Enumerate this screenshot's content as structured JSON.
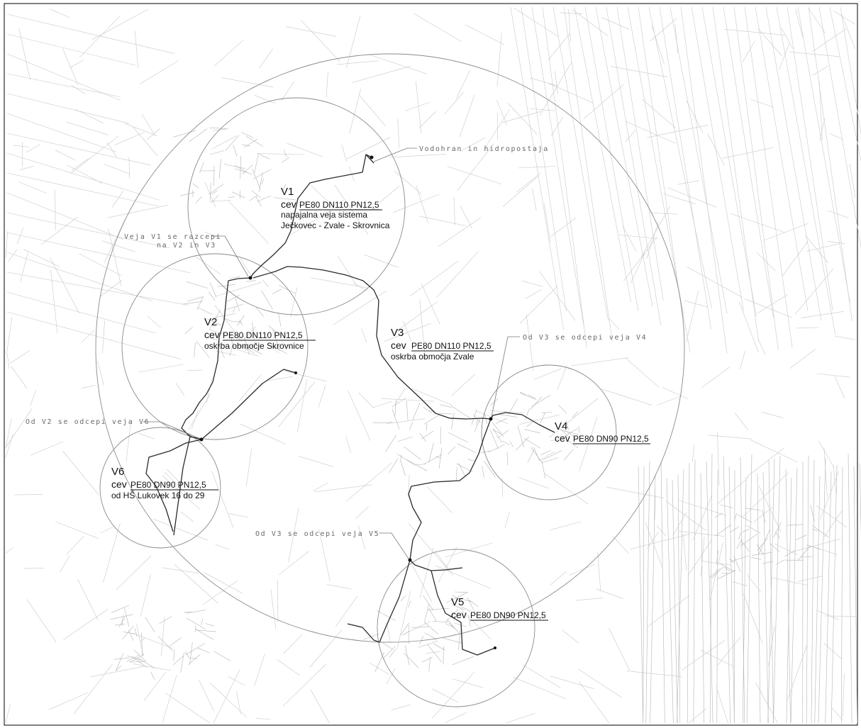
{
  "map": {
    "branches": [
      {
        "id": "V1",
        "prefix": "cev",
        "spec": "PE80 DN110 PN12,5",
        "desc": [
          "napajalna veja sistema",
          "Ječkovec - Zvale - Skrovnica"
        ]
      },
      {
        "id": "V2",
        "prefix": "cev",
        "spec": "PE80 DN110 PN12,5",
        "desc": [
          "oskrba območje Skrovnice"
        ]
      },
      {
        "id": "V3",
        "prefix": "cev",
        "spec": "PE80 DN110 PN12,5",
        "desc": [
          "oskrba območja Zvale"
        ]
      },
      {
        "id": "V4",
        "prefix": "cev",
        "spec": "PE80 DN90 PN12,5",
        "desc": []
      },
      {
        "id": "V5",
        "prefix": "cev",
        "spec": "PE80 DN90 PN12,5",
        "desc": []
      },
      {
        "id": "V6",
        "prefix": "cev",
        "spec": "PE80 DN90 PN12,5",
        "desc": [
          "od HŠ Lukovek 16 do 29"
        ]
      }
    ],
    "notes": {
      "reservoir": "Vodohran in hidropostaja",
      "split_v1_line1": "Veja V1 se razcepi",
      "split_v1_line2": "na V2 in V3",
      "split_v4": "Od V3 se odcepi veja V4",
      "split_v6": "Od V2 se odcepi veja V6",
      "split_v5": "Od V3 se odcepi veja V5"
    }
  }
}
